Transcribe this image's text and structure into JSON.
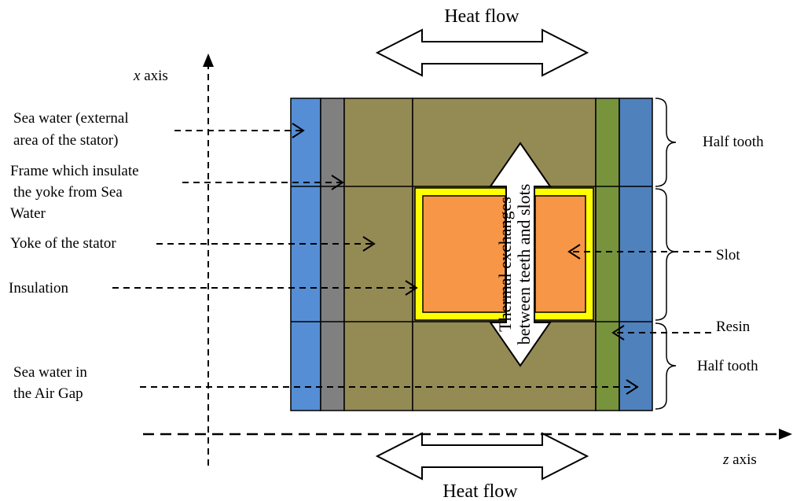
{
  "diagram": {
    "heat_flow_top": "Heat flow",
    "heat_flow_bottom": "Heat flow",
    "x_axis": "x",
    "x_axis_suffix": " axis",
    "z_axis": "z",
    "z_axis_suffix": " axis",
    "thermal_line1": "Thermal exchanges",
    "thermal_line2": "between teeth and slots",
    "left_labels": {
      "sea_water_ext_1": "Sea water (external",
      "sea_water_ext_2": "area of the stator)",
      "frame_1": "Frame which insulate",
      "frame_2": "the yoke from Sea",
      "frame_3": "Water",
      "yoke": "Yoke of the stator",
      "insulation": "Insulation",
      "air_gap_1": "Sea water in",
      "air_gap_2": "the Air Gap"
    },
    "right_labels": {
      "half_tooth_top": "Half tooth",
      "slot": "Slot",
      "resin": "Resin",
      "half_tooth_bottom": "Half tooth"
    },
    "colors": {
      "sea_water": "#558ED5",
      "frame": "#808080",
      "yoke": "#948A54",
      "resin": "#77933C",
      "air_gap": "#4F81BD",
      "slot": "#F79646",
      "insulation": "#FFFF00"
    }
  }
}
